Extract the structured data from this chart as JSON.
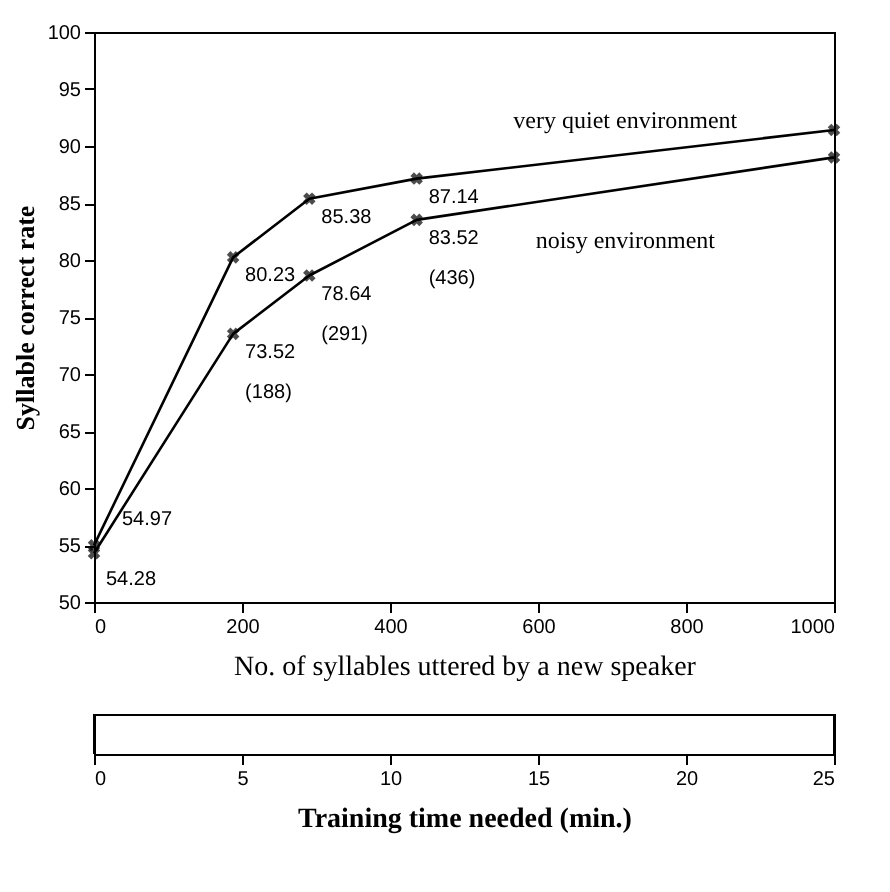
{
  "chart_data": {
    "type": "line",
    "xlabel": "No. of syllables uttered by a new speaker",
    "ylabel": "Syllable correct rate",
    "x2label": "Training time needed (min.)",
    "x": [
      0,
      188,
      291,
      436,
      1000
    ],
    "series": [
      {
        "name": "very quiet environment",
        "color": "#000000",
        "values": [
          54.97,
          80.23,
          85.38,
          87.14,
          91.4
        ]
      },
      {
        "name": "noisy environment",
        "color": "#000000",
        "values": [
          54.28,
          73.52,
          78.64,
          83.52,
          89.0
        ]
      }
    ],
    "xlim": [
      0,
      1000
    ],
    "xticks": [
      0,
      200,
      400,
      600,
      800,
      1000
    ],
    "ylim": [
      50,
      100
    ],
    "yticks": [
      50,
      55,
      60,
      65,
      70,
      75,
      80,
      85,
      90,
      95,
      100
    ],
    "x2lim": [
      0,
      25
    ],
    "x2ticks": [
      0,
      5,
      10,
      15,
      20,
      25
    ],
    "annotations": [
      {
        "text": "54.97",
        "x": 0,
        "y": 54.97
      },
      {
        "text": "54.28",
        "x": 0,
        "y": 54.28
      },
      {
        "text": "80.23",
        "x": 188,
        "y": 80.23
      },
      {
        "text": "85.38",
        "x": 291,
        "y": 85.38
      },
      {
        "text": "87.14",
        "x": 436,
        "y": 87.14
      },
      {
        "text": "73.52\n(188)",
        "x": 188,
        "y": 73.52
      },
      {
        "text": "78.64\n(291)",
        "x": 291,
        "y": 78.64
      },
      {
        "text": "83.52\n(436)",
        "x": 436,
        "y": 83.52
      }
    ],
    "marker": "cross",
    "line_style": "solid",
    "grid": false,
    "legend": false
  }
}
